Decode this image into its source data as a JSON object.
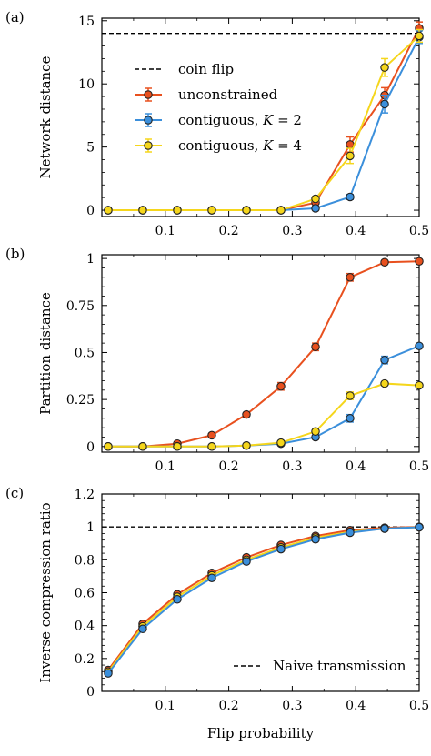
{
  "colors": {
    "unconstrained": "#E8501E",
    "contiguous_k2": "#3B8FDB",
    "contiguous_k4": "#F5D61C",
    "marker_edge": "#222222",
    "reference_line": "#000000"
  },
  "x_axis": {
    "label": "Flip probability",
    "range": [
      0,
      0.5
    ],
    "ticks": [
      "0.1",
      "0.2",
      "0.3",
      "0.4",
      "0.5"
    ]
  },
  "chart_data": [
    {
      "panel": "(a)",
      "type": "line",
      "ylabel": "Network distance",
      "xlim": [
        0,
        0.5
      ],
      "ylim": [
        -0.5,
        15.2
      ],
      "yticks": [
        0,
        5,
        10,
        15
      ],
      "ytick_labels": [
        "0",
        "5",
        "10",
        "15"
      ],
      "grid": false,
      "legend": "upper-left",
      "x": [
        0.01,
        0.0644,
        0.1189,
        0.1733,
        0.2278,
        0.2822,
        0.3367,
        0.3911,
        0.4456,
        0.5
      ],
      "reference": {
        "name": "coin flip",
        "y": 14.0,
        "style": "dashed",
        "in_legend": true
      },
      "series": [
        {
          "name": "unconstrained",
          "key": "unconstrained",
          "values": [
            0.0,
            0.0,
            0.0,
            0.0,
            0.0,
            0.0,
            0.6,
            5.2,
            9.1,
            14.4
          ],
          "errors": [
            0.1,
            0.1,
            0.1,
            0.1,
            0.1,
            0.1,
            0.3,
            0.6,
            0.6,
            0.5
          ]
        },
        {
          "name": "contiguous, ",
          "italic_suffix": "K",
          "suffix": " = 2",
          "key": "contiguous_k2",
          "values": [
            0.0,
            0.0,
            0.0,
            0.0,
            0.0,
            0.0,
            0.15,
            1.05,
            8.4,
            13.7
          ],
          "errors": [
            0.1,
            0.1,
            0.1,
            0.1,
            0.1,
            0.1,
            0.1,
            0.2,
            0.7,
            0.5
          ]
        },
        {
          "name": "contiguous, ",
          "italic_suffix": "K",
          "suffix": " = 4",
          "key": "contiguous_k4",
          "values": [
            0.0,
            0.0,
            0.0,
            0.0,
            0.0,
            0.0,
            0.9,
            4.3,
            11.3,
            13.8
          ],
          "errors": [
            0.1,
            0.1,
            0.1,
            0.1,
            0.1,
            0.1,
            0.2,
            0.6,
            0.7,
            0.5
          ]
        }
      ]
    },
    {
      "panel": "(b)",
      "type": "line",
      "ylabel": "Partition distance",
      "xlim": [
        0,
        0.5
      ],
      "ylim": [
        -0.03,
        1.02
      ],
      "yticks": [
        0,
        0.25,
        0.5,
        0.75,
        1
      ],
      "ytick_labels": [
        "0",
        "0.25",
        "0.5",
        "0.75",
        "1"
      ],
      "grid": false,
      "x": [
        0.01,
        0.0644,
        0.1189,
        0.1733,
        0.2278,
        0.2822,
        0.3367,
        0.3911,
        0.4456,
        0.5
      ],
      "series": [
        {
          "name": "unconstrained",
          "key": "unconstrained",
          "values": [
            0.0,
            0.0,
            0.015,
            0.06,
            0.17,
            0.32,
            0.53,
            0.9,
            0.98,
            0.985
          ],
          "errors": [
            0.01,
            0.01,
            0.01,
            0.01,
            0.01,
            0.02,
            0.02,
            0.02,
            0.01,
            0.01
          ]
        },
        {
          "name": "contiguous, K = 2",
          "key": "contiguous_k2",
          "values": [
            0.0,
            0.0,
            0.0,
            0.0,
            0.005,
            0.015,
            0.05,
            0.15,
            0.46,
            0.535
          ],
          "errors": [
            0.01,
            0.01,
            0.01,
            0.01,
            0.01,
            0.01,
            0.01,
            0.02,
            0.02,
            0.01
          ]
        },
        {
          "name": "contiguous, K = 4",
          "key": "contiguous_k4",
          "values": [
            0.0,
            0.0,
            0.0,
            0.0,
            0.005,
            0.02,
            0.08,
            0.27,
            0.335,
            0.325
          ],
          "errors": [
            0.01,
            0.01,
            0.01,
            0.01,
            0.01,
            0.01,
            0.01,
            0.02,
            0.01,
            0.01
          ]
        }
      ]
    },
    {
      "panel": "(c)",
      "type": "line",
      "ylabel": "Inverse compression ratio",
      "xlim": [
        0,
        0.5
      ],
      "ylim": [
        0,
        1.2
      ],
      "yticks": [
        0,
        0.2,
        0.4,
        0.6,
        0.8,
        1,
        1.2
      ],
      "ytick_labels": [
        "0",
        "0.2",
        "0.4",
        "0.6",
        "0.8",
        "1",
        "1.2"
      ],
      "grid": false,
      "legend": "lower-right",
      "x": [
        0.01,
        0.0644,
        0.1189,
        0.1733,
        0.2278,
        0.2822,
        0.3367,
        0.3911,
        0.4456,
        0.5
      ],
      "reference": {
        "name": "Naive transmission",
        "y": 1.0,
        "style": "dashed",
        "in_legend": true
      },
      "series": [
        {
          "name": "unconstrained",
          "key": "unconstrained",
          "values": [
            0.13,
            0.41,
            0.59,
            0.72,
            0.815,
            0.89,
            0.945,
            0.98,
            0.995,
            1.0
          ],
          "errors": [
            0.005,
            0.005,
            0.005,
            0.005,
            0.005,
            0.005,
            0.005,
            0.005,
            0.005,
            0.005
          ]
        },
        {
          "name": "contiguous, K = 4",
          "key": "contiguous_k4",
          "values": [
            0.12,
            0.395,
            0.575,
            0.705,
            0.8,
            0.875,
            0.935,
            0.97,
            0.99,
            0.998
          ],
          "errors": [
            0.005,
            0.005,
            0.005,
            0.005,
            0.005,
            0.005,
            0.005,
            0.005,
            0.005,
            0.005
          ]
        },
        {
          "name": "contiguous, K = 2",
          "key": "contiguous_k2",
          "values": [
            0.11,
            0.38,
            0.56,
            0.69,
            0.79,
            0.865,
            0.925,
            0.965,
            0.99,
            0.998
          ],
          "errors": [
            0.005,
            0.005,
            0.005,
            0.005,
            0.005,
            0.005,
            0.005,
            0.005,
            0.005,
            0.005
          ]
        }
      ]
    }
  ]
}
